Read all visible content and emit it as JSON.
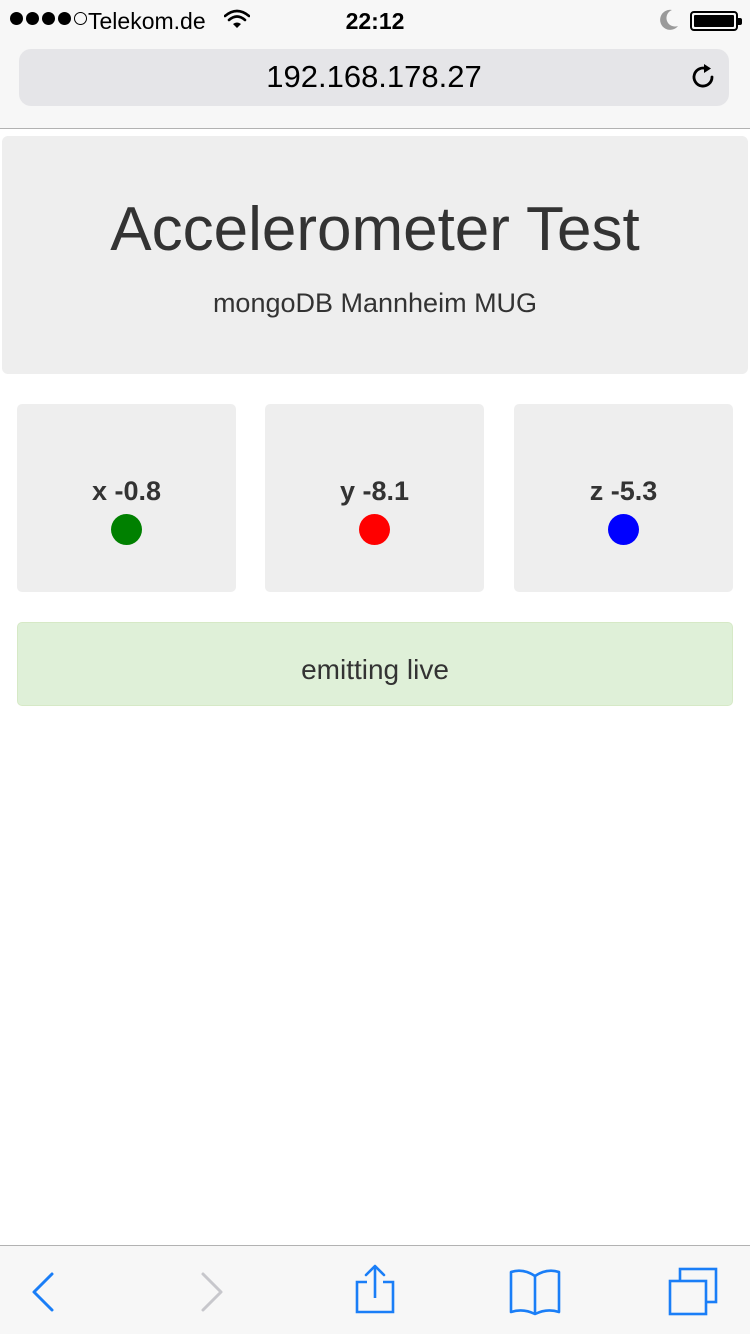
{
  "status_bar": {
    "carrier": "Telekom.de",
    "time": "22:12"
  },
  "url_bar": {
    "address": "192.168.178.27"
  },
  "header": {
    "title": "Accelerometer Test",
    "subtitle": "mongoDB Mannheim MUG"
  },
  "axes": [
    {
      "label": "x -0.8",
      "color": "#008000"
    },
    {
      "label": "y -8.1",
      "color": "#ff0000"
    },
    {
      "label": "z -5.3",
      "color": "#0000ff"
    }
  ],
  "status_message": "emitting live",
  "toolbar": {
    "icons": [
      "back-icon",
      "forward-icon",
      "share-icon",
      "bookmarks-icon",
      "tabs-icon"
    ],
    "accent": "#1a7ef7",
    "disabled": "#c7c7cc"
  }
}
